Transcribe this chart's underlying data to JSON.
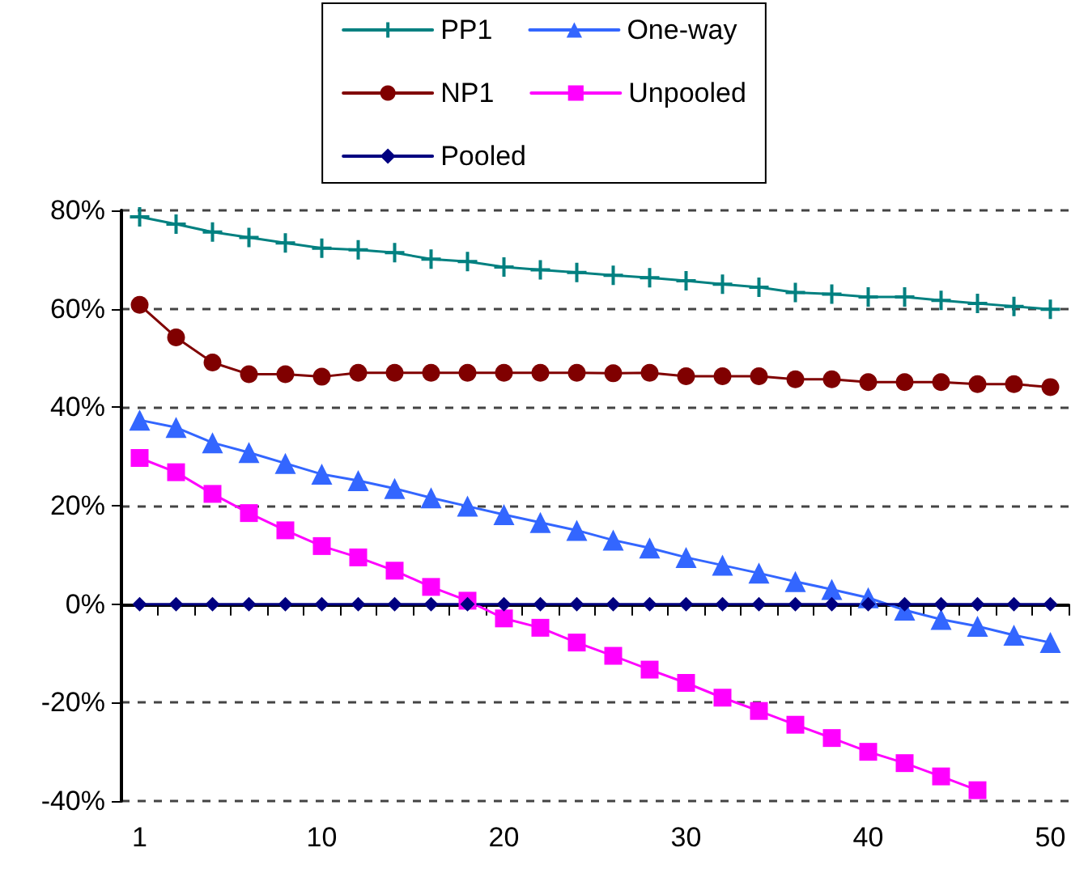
{
  "chart_data": {
    "type": "line",
    "categories": [
      "1",
      null,
      null,
      null,
      null,
      "10",
      null,
      null,
      null,
      null,
      "20",
      null,
      null,
      null,
      null,
      "30",
      null,
      null,
      null,
      null,
      "40",
      null,
      null,
      null,
      null,
      "50"
    ],
    "series": [
      {
        "name": "PP1",
        "color": "#008080",
        "marker": "cross",
        "values": [
          78.7,
          77.2,
          75.6,
          74.5,
          73.4,
          72.3,
          72.0,
          71.4,
          70.1,
          69.6,
          68.5,
          67.9,
          67.4,
          66.8,
          66.3,
          65.7,
          65.0,
          64.4,
          63.3,
          63.0,
          62.4,
          62.4,
          61.7,
          61.1,
          60.5,
          59.9
        ]
      },
      {
        "name": "One-way",
        "color": "#3366ff",
        "marker": "triangle",
        "values": [
          37.4,
          35.9,
          32.8,
          30.8,
          28.6,
          26.4,
          25.1,
          23.5,
          21.6,
          19.9,
          18.2,
          16.6,
          15.0,
          13.0,
          11.4,
          9.5,
          7.9,
          6.3,
          4.6,
          3.0,
          1.3,
          -1.2,
          -3.1,
          -4.5,
          -6.3,
          -7.8
        ]
      },
      {
        "name": "NP1",
        "color": "#800000",
        "marker": "circle",
        "values": [
          60.8,
          54.2,
          49.1,
          46.7,
          46.7,
          46.2,
          47.0,
          47.0,
          47.0,
          47.0,
          47.0,
          47.0,
          47.0,
          46.9,
          47.0,
          46.3,
          46.3,
          46.3,
          45.7,
          45.7,
          45.1,
          45.1,
          45.1,
          44.7,
          44.7,
          44.1
        ]
      },
      {
        "name": "Unpooled",
        "color": "#ff00ff",
        "marker": "square",
        "values": [
          29.7,
          26.8,
          22.4,
          18.5,
          15.0,
          11.8,
          9.5,
          6.8,
          3.5,
          0.7,
          -2.9,
          -4.8,
          -7.8,
          -10.5,
          -13.3,
          -16.0,
          -19.0,
          -21.7,
          -24.5,
          -27.2,
          -30.0,
          -32.3,
          -35.0,
          -37.8,
          null,
          null
        ]
      },
      {
        "name": "Pooled",
        "color": "#000080",
        "marker": "diamond",
        "values": [
          0,
          0,
          0,
          0,
          0,
          0,
          0,
          0,
          0,
          0,
          0,
          0,
          0,
          0,
          0,
          0,
          0,
          0,
          0,
          0,
          0,
          0,
          0,
          0,
          0,
          0
        ]
      }
    ],
    "ylim": [
      -40,
      80
    ],
    "yticks": [
      {
        "value": -40,
        "label": "-40%"
      },
      {
        "value": -20,
        "label": "-20%"
      },
      {
        "value": 0,
        "label": "0%"
      },
      {
        "value": 20,
        "label": "20%"
      },
      {
        "value": 40,
        "label": "40%"
      },
      {
        "value": 60,
        "label": "60%"
      },
      {
        "value": 80,
        "label": "80%"
      }
    ],
    "grid": "y",
    "legend": "top",
    "line_style": "solid"
  }
}
